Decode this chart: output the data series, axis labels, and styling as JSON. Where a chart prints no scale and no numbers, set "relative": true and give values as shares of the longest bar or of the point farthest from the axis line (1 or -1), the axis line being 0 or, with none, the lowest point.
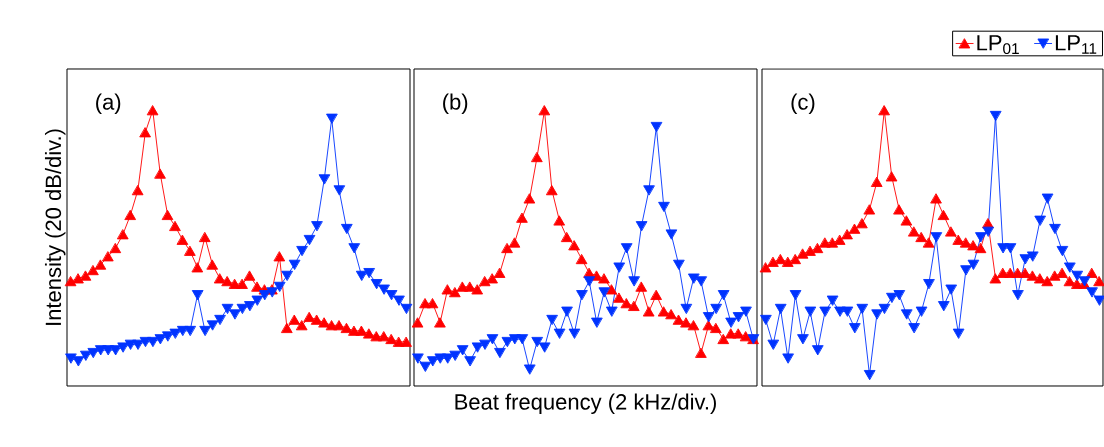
{
  "chart_data": [
    {
      "type": "line",
      "relative": true,
      "ylabel": "Intensity (20 dB/div.)",
      "annotations": [
        "(a)"
      ],
      "categories": [
        null,
        null,
        null,
        null,
        null,
        null,
        null,
        null,
        null,
        null,
        null,
        null,
        null,
        null,
        null,
        null,
        null,
        null,
        null,
        null,
        null,
        null,
        null,
        null,
        null,
        null,
        null,
        null,
        null,
        null,
        null,
        null,
        null,
        null,
        null,
        null,
        null,
        null,
        null,
        null,
        null,
        null,
        null,
        null,
        null,
        null
      ],
      "series": [
        {
          "color": "#ff0000",
          "marker": "triangle",
          "values": [
            0.38,
            0.39,
            0.4,
            0.42,
            0.44,
            0.47,
            0.5,
            0.55,
            0.62,
            0.71,
            0.92,
            1.0,
            0.77,
            0.62,
            0.58,
            0.53,
            0.49,
            0.43,
            0.54,
            0.44,
            0.39,
            0.38,
            0.37,
            0.37,
            0.4,
            0.36,
            0.35,
            0.35,
            0.47,
            0.21,
            0.24,
            0.22,
            0.25,
            0.24,
            0.23,
            0.22,
            0.22,
            0.21,
            0.2,
            0.2,
            0.19,
            0.18,
            0.18,
            0.17,
            0.16,
            0.16
          ]
        },
        {
          "color": "#0033ff",
          "marker": "triangle-down",
          "values": [
            0.1,
            0.09,
            0.11,
            0.12,
            0.13,
            0.13,
            0.13,
            0.14,
            0.15,
            0.15,
            0.16,
            0.16,
            0.17,
            0.18,
            0.19,
            0.2,
            0.2,
            0.33,
            0.2,
            0.22,
            0.24,
            0.28,
            0.26,
            0.28,
            0.29,
            0.31,
            0.33,
            0.34,
            0.36,
            0.4,
            0.44,
            0.49,
            0.53,
            0.58,
            0.75,
            0.97,
            0.71,
            0.57,
            0.5,
            0.4,
            0.41,
            0.37,
            0.35,
            0.33,
            0.31,
            0.28
          ]
        }
      ]
    },
    {
      "type": "line",
      "relative": true,
      "xlabel": "Beat frequency (2 kHz/div.)",
      "annotations": [
        "(b)"
      ],
      "categories": [
        null,
        null,
        null,
        null,
        null,
        null,
        null,
        null,
        null,
        null,
        null,
        null,
        null,
        null,
        null,
        null,
        null,
        null,
        null,
        null,
        null,
        null,
        null,
        null,
        null,
        null,
        null,
        null,
        null,
        null,
        null,
        null,
        null,
        null,
        null,
        null,
        null,
        null,
        null,
        null,
        null,
        null,
        null,
        null,
        null,
        null
      ],
      "series": [
        {
          "color": "#ff0000",
          "marker": "triangle",
          "values": [
            0.23,
            0.3,
            0.3,
            0.23,
            0.35,
            0.34,
            0.36,
            0.36,
            0.35,
            0.38,
            0.39,
            0.41,
            0.5,
            0.52,
            0.61,
            0.68,
            0.83,
            1.0,
            0.71,
            0.6,
            0.54,
            0.51,
            0.46,
            0.41,
            0.4,
            0.39,
            0.35,
            0.32,
            0.3,
            0.29,
            0.36,
            0.27,
            0.33,
            0.27,
            0.26,
            0.24,
            0.23,
            0.22,
            0.12,
            0.22,
            0.21,
            0.17,
            0.19,
            0.19,
            0.18,
            0.17
          ]
        },
        {
          "color": "#0033ff",
          "marker": "triangle-down",
          "values": [
            0.1,
            0.07,
            0.09,
            0.1,
            0.1,
            0.11,
            0.13,
            0.09,
            0.14,
            0.15,
            0.17,
            0.12,
            0.16,
            0.17,
            0.17,
            0.06,
            0.16,
            0.14,
            0.24,
            0.19,
            0.27,
            0.19,
            0.33,
            0.38,
            0.23,
            0.34,
            0.27,
            0.43,
            0.5,
            0.38,
            0.58,
            0.71,
            0.94,
            0.65,
            0.55,
            0.44,
            0.28,
            0.39,
            0.38,
            0.25,
            0.28,
            0.33,
            0.23,
            0.25,
            0.27,
            0.17
          ]
        }
      ]
    },
    {
      "type": "line",
      "relative": true,
      "legend": "top right",
      "annotations": [
        "(c)"
      ],
      "categories": [
        null,
        null,
        null,
        null,
        null,
        null,
        null,
        null,
        null,
        null,
        null,
        null,
        null,
        null,
        null,
        null,
        null,
        null,
        null,
        null,
        null,
        null,
        null,
        null,
        null,
        null,
        null,
        null,
        null,
        null,
        null,
        null,
        null,
        null,
        null,
        null,
        null,
        null,
        null,
        null,
        null,
        null,
        null,
        null,
        null,
        null
      ],
      "series": [
        {
          "name": "LP$_{01}$",
          "color": "#ff0000",
          "marker": "triangle",
          "values": [
            0.43,
            0.45,
            0.46,
            0.45,
            0.46,
            0.48,
            0.49,
            0.5,
            0.52,
            0.52,
            0.53,
            0.55,
            0.57,
            0.59,
            0.64,
            0.74,
            1.0,
            0.76,
            0.64,
            0.6,
            0.56,
            0.54,
            0.52,
            0.68,
            0.62,
            0.56,
            0.53,
            0.52,
            0.51,
            0.5,
            0.59,
            0.39,
            0.41,
            0.41,
            0.41,
            0.41,
            0.4,
            0.39,
            0.38,
            0.4,
            0.41,
            0.38,
            0.37,
            0.37,
            0.41,
            0.38
          ]
        },
        {
          "name": "LP$_{11}$",
          "color": "#0033ff",
          "marker": "triangle-down",
          "values": [
            0.24,
            0.15,
            0.28,
            0.1,
            0.33,
            0.17,
            0.27,
            0.13,
            0.27,
            0.31,
            0.27,
            0.27,
            0.21,
            0.28,
            0.04,
            0.26,
            0.28,
            0.32,
            0.33,
            0.26,
            0.21,
            0.27,
            0.37,
            0.54,
            0.29,
            0.35,
            0.19,
            0.42,
            0.44,
            0.54,
            0.56,
            0.98,
            0.5,
            0.5,
            0.33,
            0.46,
            0.47,
            0.6,
            0.68,
            0.57,
            0.49,
            0.43,
            0.4,
            0.38,
            0.34,
            0.31
          ]
        }
      ]
    }
  ]
}
